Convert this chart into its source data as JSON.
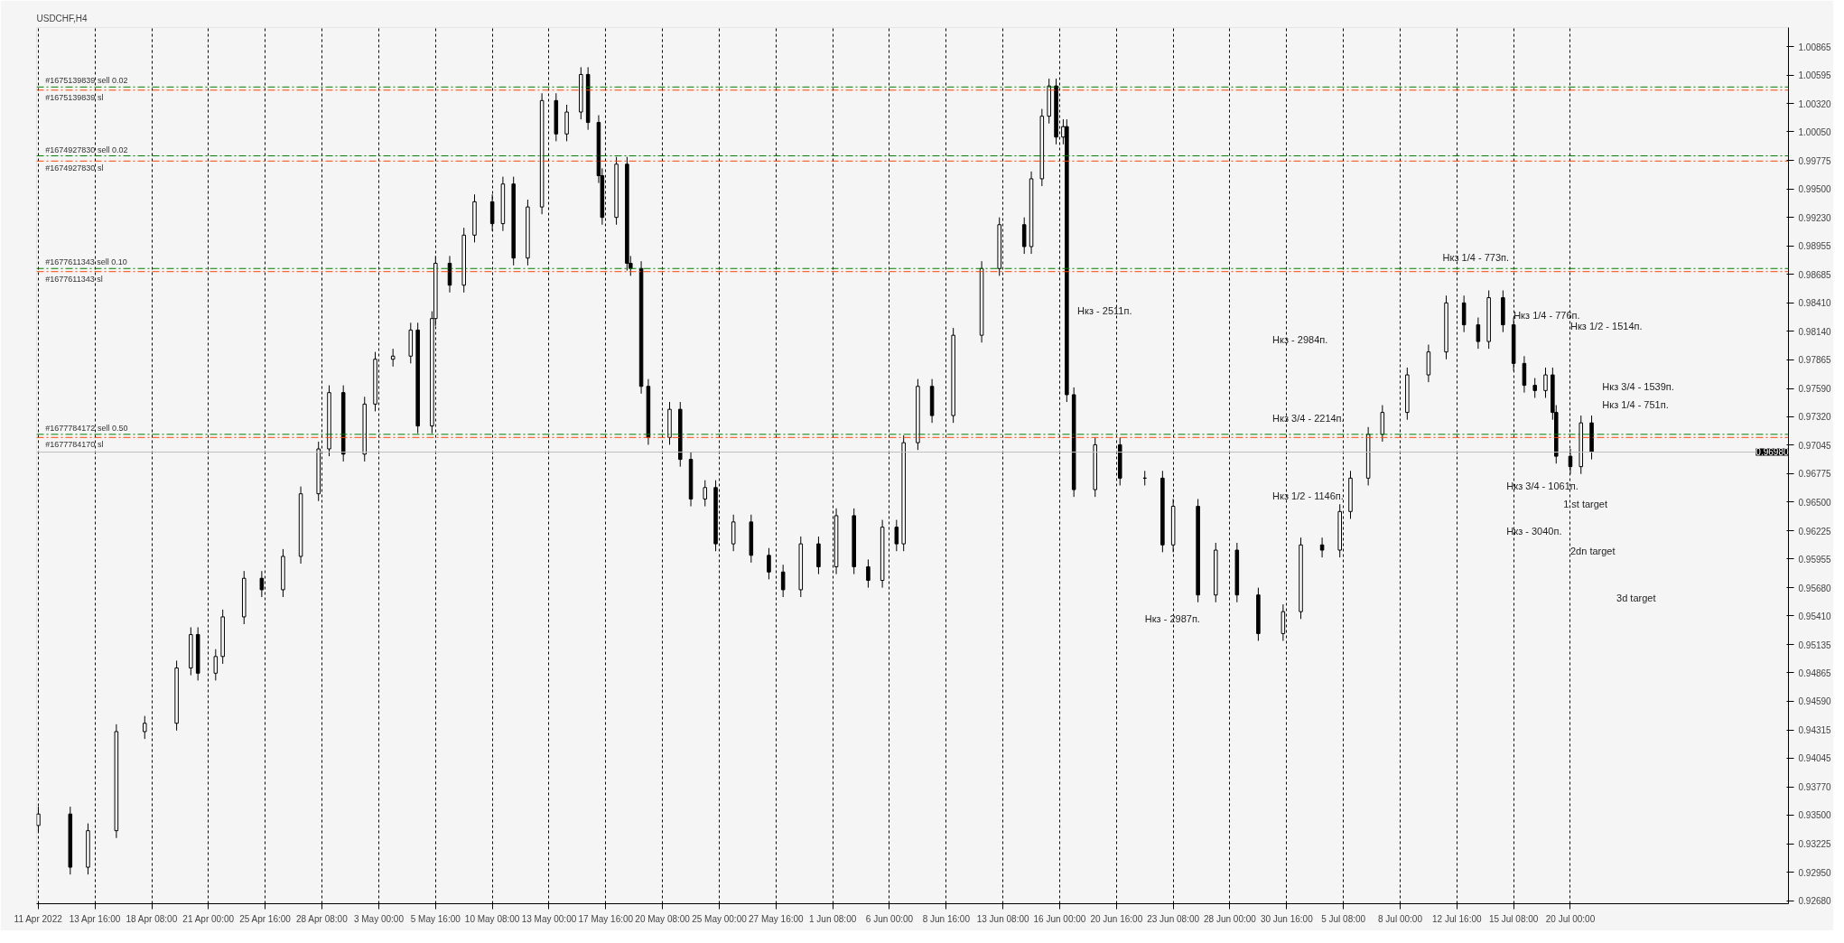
{
  "chart_data": {
    "type": "candlestick",
    "title": "USDCHF,H4",
    "categories": [
      "11 Apr 2022",
      null,
      null,
      null,
      null,
      null,
      null,
      null,
      null,
      null,
      null,
      null,
      null,
      null,
      null,
      null,
      "13 Apr 16:00",
      null,
      null,
      null,
      null,
      null,
      null,
      null,
      null,
      null,
      null,
      null,
      null,
      null,
      null,
      null,
      "18 Apr 08:00",
      null,
      null,
      null,
      null,
      null,
      null,
      null,
      null,
      null,
      null,
      null,
      null,
      null,
      null,
      null,
      "21 Apr 00:00",
      null,
      null,
      null,
      null,
      null,
      null,
      null,
      null,
      null,
      null,
      null,
      null,
      null,
      null,
      null,
      "25 Apr 16:00",
      null,
      null,
      null,
      null,
      null,
      null,
      null,
      null,
      null,
      null,
      null,
      null,
      null,
      null,
      null,
      "28 Apr 08:00",
      null,
      null,
      null,
      null,
      null,
      null,
      null,
      null,
      null,
      null,
      null,
      null,
      null,
      null,
      null,
      "3 May 00:00",
      null,
      null,
      null,
      null,
      null,
      null,
      null,
      null,
      null,
      null,
      null,
      null,
      null,
      null,
      null,
      "5 May 16:00",
      null,
      null,
      null,
      null,
      null,
      null,
      null,
      null,
      null,
      null,
      null,
      null,
      null,
      null,
      null,
      "10 May 08:00",
      null,
      null,
      null,
      null,
      null,
      null,
      null,
      null,
      null,
      null,
      null,
      null,
      null,
      null,
      null,
      "13 May 00:00",
      null,
      null,
      null,
      null,
      null,
      null,
      null,
      null,
      null,
      null,
      null,
      null,
      null,
      null,
      null,
      "17 May 16:00",
      null,
      null,
      null,
      null,
      null,
      null,
      null,
      null,
      null,
      null,
      null,
      null,
      null,
      null,
      null,
      "20 May 08:00",
      null,
      null,
      null,
      null,
      null,
      null,
      null,
      null,
      null,
      null,
      null,
      null,
      null,
      null,
      null,
      "25 May 00:00",
      null,
      null,
      null,
      null,
      null,
      null,
      null,
      null,
      null,
      null,
      null,
      null,
      null,
      null,
      null,
      "27 May 16:00",
      null,
      null,
      null,
      null,
      null,
      null,
      null,
      null,
      null,
      null,
      null,
      null,
      null,
      null,
      null,
      "1 Jun 08:00",
      null,
      null,
      null,
      null,
      null,
      null,
      null,
      null,
      null,
      null,
      null,
      null,
      null,
      null,
      null,
      "6 Jun 00:00",
      null,
      null,
      null,
      null,
      null,
      null,
      null,
      null,
      null,
      null,
      null,
      null,
      null,
      null,
      null,
      "8 Jun 16:00",
      null,
      null,
      null,
      null,
      null,
      null,
      null,
      null,
      null,
      null,
      null,
      null,
      null,
      null,
      null,
      "13 Jun 08:00",
      null,
      null,
      null,
      null,
      null,
      null,
      null,
      null,
      null,
      null,
      null,
      null,
      null,
      null,
      null,
      "16 Jun 00:00",
      null,
      null,
      null,
      null,
      null,
      null,
      null,
      null,
      null,
      null,
      null,
      null,
      null,
      null,
      null,
      "20 Jun 16:00",
      null,
      null,
      null,
      null,
      null,
      null,
      null,
      null,
      null,
      null,
      null,
      null,
      null,
      null,
      null,
      "23 Jun 08:00",
      null,
      null,
      null,
      null,
      null,
      null,
      null,
      null,
      null,
      null,
      null,
      null,
      null,
      null,
      null,
      "28 Jun 00:00",
      null,
      null,
      null,
      null,
      null,
      null,
      null,
      null,
      null,
      null,
      null,
      null,
      null,
      null,
      null,
      "30 Jun 16:00",
      null,
      null,
      null,
      null,
      null,
      null,
      null,
      null,
      null,
      null,
      null,
      null,
      null,
      null,
      null,
      "5 Jul 08:00",
      null,
      null,
      null,
      null,
      null,
      null,
      null,
      null,
      null,
      null,
      null,
      null,
      null,
      null,
      null,
      "8 Jul 00:00",
      null,
      null,
      null,
      null,
      null,
      null,
      null,
      null,
      null,
      null,
      null,
      null,
      null,
      null,
      null,
      "12 Jul 16:00",
      null,
      null,
      null,
      null,
      null,
      null,
      null,
      null,
      null,
      null,
      null,
      null,
      null,
      null,
      null,
      "15 Jul 08:00",
      null,
      null,
      null,
      null,
      null,
      null,
      null,
      null,
      null,
      null,
      null,
      null,
      null,
      null,
      null,
      "20 Jul 00:00",
      null,
      null,
      null,
      null,
      null,
      null,
      null,
      null,
      null,
      null,
      null,
      null,
      null,
      null,
      null,
      null,
      null,
      null,
      null,
      null,
      null,
      null,
      null,
      null,
      null,
      null,
      null,
      null,
      null,
      null,
      null,
      null,
      null,
      null,
      null,
      null,
      null,
      null,
      null,
      null,
      null,
      null,
      null,
      null,
      null,
      null,
      null,
      null,
      null,
      null,
      null,
      null,
      null,
      null,
      null,
      null,
      null,
      null,
      null,
      null,
      null
    ],
    "ohlc": [
      [
        0.934,
        0.9358,
        0.9333,
        0.9351
      ],
      null,
      null,
      null,
      null,
      null,
      null,
      null,
      null,
      [
        0.9351,
        0.9358,
        0.9293,
        0.93
      ],
      null,
      null,
      null,
      null,
      [
        0.93,
        0.9342,
        0.9293,
        0.9335
      ],
      null,
      null,
      null,
      null,
      null,
      null,
      null,
      [
        0.9335,
        0.9437,
        0.9328,
        0.943
      ],
      null,
      null,
      null,
      null,
      null,
      null,
      null,
      [
        0.943,
        0.9445,
        0.9423,
        0.9438
      ],
      null,
      null,
      null,
      null,
      null,
      null,
      null,
      null,
      [
        0.9438,
        0.9498,
        0.9431,
        0.9491
      ],
      null,
      null,
      null,
      [
        0.9491,
        0.953,
        0.9484,
        0.9523
      ],
      null,
      [
        0.9523,
        0.953,
        0.9479,
        0.9486
      ],
      null,
      null,
      null,
      null,
      [
        0.9486,
        0.9509,
        0.9479,
        0.9502
      ],
      null,
      [
        0.9502,
        0.9547,
        0.9495,
        0.954
      ],
      null,
      null,
      null,
      null,
      null,
      [
        0.954,
        0.9584,
        0.9533,
        0.9577
      ],
      null,
      null,
      null,
      null,
      [
        0.9577,
        0.9584,
        0.9559,
        0.9566
      ],
      null,
      null,
      null,
      null,
      null,
      [
        0.9566,
        0.9605,
        0.9559,
        0.9598
      ],
      null,
      null,
      null,
      null,
      [
        0.9598,
        0.9665,
        0.9591,
        0.9658
      ],
      null,
      null,
      null,
      null,
      [
        0.9658,
        0.9708,
        0.9651,
        0.9701
      ],
      null,
      null,
      [
        0.9701,
        0.9762,
        0.9694,
        0.9755
      ],
      null,
      null,
      null,
      [
        0.9755,
        0.9762,
        0.9689,
        0.9696
      ],
      null,
      null,
      null,
      null,
      null,
      [
        0.9696,
        0.9751,
        0.9689,
        0.9744
      ],
      null,
      null,
      [
        0.9744,
        0.9794,
        0.9737,
        0.9787
      ],
      null,
      null,
      null,
      null,
      [
        0.9787,
        0.9797,
        0.978,
        0.979
      ],
      null,
      null,
      null,
      null,
      [
        0.979,
        0.9822,
        0.9783,
        0.9815
      ],
      null,
      [
        0.9815,
        0.9822,
        0.9716,
        0.9723
      ],
      null,
      null,
      null,
      [
        0.9723,
        0.9833,
        0.9716,
        0.9826
      ],
      [
        0.9826,
        0.9886,
        0.9819,
        0.9879
      ],
      null,
      null,
      null,
      [
        0.9879,
        0.9886,
        0.9851,
        0.9858
      ],
      null,
      null,
      null,
      [
        0.9858,
        0.9913,
        0.9851,
        0.9906
      ],
      null,
      null,
      [
        0.9906,
        0.9945,
        0.9899,
        0.9938
      ],
      null,
      null,
      null,
      null,
      [
        0.9938,
        0.9945,
        0.991,
        0.9917
      ],
      null,
      null,
      [
        0.9917,
        0.9962,
        0.991,
        0.9955
      ],
      null,
      null,
      [
        0.9955,
        0.9962,
        0.9877,
        0.9884
      ],
      null,
      null,
      null,
      [
        0.9884,
        0.994,
        0.9877,
        0.9933
      ],
      null,
      null,
      null,
      [
        0.9933,
        1.0042,
        0.9926,
        1.0035
      ],
      null,
      null,
      null,
      [
        1.0035,
        1.0042,
        0.9996,
        1.0003
      ],
      null,
      null,
      [
        1.0003,
        1.0031,
        0.9996,
        1.0024
      ],
      null,
      null,
      null,
      [
        1.0024,
        1.0067,
        1.0017,
        1.006
      ],
      null,
      [
        1.006,
        1.0067,
        1.0007,
        1.0014
      ],
      null,
      null,
      [
        1.0014,
        1.0021,
        0.9956,
        0.9963
      ],
      [
        0.9963,
        0.997,
        0.9916,
        0.9923
      ],
      null,
      null,
      null,
      [
        0.9923,
        0.9981,
        0.9916,
        0.9974
      ],
      null,
      null,
      [
        0.9974,
        0.9981,
        0.9872,
        0.9879
      ],
      [
        0.9879,
        0.9886,
        0.9867,
        0.9874
      ],
      null,
      null,
      [
        0.9874,
        0.9881,
        0.9754,
        0.9761
      ],
      null,
      [
        0.9761,
        0.9768,
        0.9705,
        0.9712
      ],
      null,
      null,
      null,
      null,
      null,
      [
        0.9712,
        0.9746,
        0.9705,
        0.9739
      ],
      null,
      null,
      [
        0.9739,
        0.9746,
        0.9684,
        0.9691
      ],
      null,
      null,
      [
        0.9691,
        0.9698,
        0.9646,
        0.9653
      ],
      null,
      null,
      null,
      [
        0.9653,
        0.9671,
        0.9646,
        0.9664
      ],
      null,
      null,
      [
        0.9664,
        0.9671,
        0.9603,
        0.961
      ],
      null,
      null,
      null,
      null,
      [
        0.961,
        0.9638,
        0.9603,
        0.9631
      ],
      null,
      null,
      null,
      null,
      [
        0.9631,
        0.9638,
        0.9592,
        0.9599
      ],
      null,
      null,
      null,
      null,
      [
        0.9599,
        0.9606,
        0.9576,
        0.9583
      ],
      null,
      null,
      null,
      [
        0.9583,
        0.959,
        0.9559,
        0.9566
      ],
      null,
      null,
      null,
      null,
      [
        0.9566,
        0.9617,
        0.9559,
        0.961
      ],
      null,
      null,
      null,
      null,
      [
        0.961,
        0.9617,
        0.9581,
        0.9588
      ],
      null,
      null,
      null,
      null,
      [
        0.9588,
        0.9644,
        0.9581,
        0.9637
      ],
      null,
      null,
      null,
      null,
      [
        0.9637,
        0.9644,
        0.9581,
        0.9588
      ],
      null,
      null,
      null,
      [
        0.9588,
        0.9595,
        0.9568,
        0.9575
      ],
      null,
      null,
      null,
      [
        0.9575,
        0.9633,
        0.9568,
        0.9626
      ],
      null,
      null,
      null,
      [
        0.9626,
        0.9633,
        0.9603,
        0.961
      ],
      null,
      [
        0.961,
        0.9714,
        0.9603,
        0.9707
      ],
      null,
      null,
      null,
      [
        0.9707,
        0.9768,
        0.97,
        0.9761
      ],
      null,
      null,
      null,
      [
        0.9761,
        0.9768,
        0.9726,
        0.9733
      ],
      null,
      null,
      null,
      null,
      null,
      [
        0.9733,
        0.9817,
        0.9726,
        0.981
      ],
      null,
      null,
      null,
      null,
      null,
      null,
      null,
      [
        0.981,
        0.9881,
        0.9803,
        0.9874
      ],
      null,
      null,
      null,
      null,
      [
        0.9874,
        0.9923,
        0.9867,
        0.9916
      ],
      null,
      null,
      null,
      null,
      null,
      null,
      [
        0.9916,
        0.9923,
        0.9888,
        0.9895
      ],
      null,
      [
        0.9895,
        0.9967,
        0.9888,
        0.996
      ],
      null,
      null,
      [
        0.996,
        1.0027,
        0.9953,
        1.002
      ],
      null,
      [
        1.002,
        1.0056,
        1.0013,
        1.0049
      ],
      null,
      [
        1.0049,
        1.0056,
        0.9993,
        1.0
      ],
      null,
      [
        1.0,
        1.0017,
        0.9993,
        1.001
      ],
      [
        1.001,
        1.0017,
        0.9746,
        0.9753
      ],
      null,
      [
        0.9753,
        0.976,
        0.9655,
        0.9662
      ],
      null,
      null,
      null,
      null,
      null,
      [
        0.9662,
        0.9712,
        0.9655,
        0.9705
      ],
      null,
      null,
      null,
      null,
      null,
      null,
      [
        0.9705,
        0.9712,
        0.9666,
        0.9673
      ],
      null,
      null,
      null,
      null,
      null,
      null,
      [
        0.9673,
        0.968,
        0.9666,
        0.9673
      ],
      null,
      null,
      null,
      null,
      [
        0.9673,
        0.968,
        0.9602,
        0.9609
      ],
      null,
      null,
      [
        0.9609,
        0.9653,
        0.9602,
        0.9646
      ],
      null,
      null,
      null,
      null,
      null,
      null,
      [
        0.9646,
        0.9653,
        0.9554,
        0.9561
      ],
      null,
      null,
      null,
      null,
      [
        0.9561,
        0.9611,
        0.9554,
        0.9604
      ],
      null,
      null,
      null,
      null,
      null,
      [
        0.9604,
        0.9611,
        0.9554,
        0.9561
      ],
      null,
      null,
      null,
      null,
      null,
      [
        0.9561,
        0.9568,
        0.9517,
        0.9524
      ],
      null,
      null,
      null,
      null,
      null,
      null,
      [
        0.9524,
        0.9552,
        0.9517,
        0.9545
      ],
      null,
      null,
      null,
      null,
      [
        0.9545,
        0.9616,
        0.9538,
        0.9609
      ],
      null,
      null,
      null,
      null,
      null,
      [
        0.9609,
        0.9616,
        0.9597,
        0.9604
      ],
      null,
      null,
      null,
      null,
      [
        0.9604,
        0.9648,
        0.9597,
        0.9641
      ],
      null,
      null,
      [
        0.9641,
        0.968,
        0.9634,
        0.9673
      ],
      null,
      null,
      null,
      null,
      [
        0.9673,
        0.9722,
        0.9666,
        0.9715
      ],
      null,
      null,
      null,
      [
        0.9715,
        0.9743,
        0.9708,
        0.9736
      ],
      null,
      null,
      null,
      null,
      null,
      null,
      [
        0.9736,
        0.9779,
        0.9729,
        0.9772
      ],
      null,
      null,
      null,
      null,
      null,
      [
        0.9772,
        0.9801,
        0.9765,
        0.9794
      ],
      null,
      null,
      null,
      null,
      [
        0.9794,
        0.9848,
        0.9787,
        0.9841
      ],
      null,
      null,
      null,
      null,
      [
        0.9841,
        0.9848,
        0.9813,
        0.982
      ],
      null,
      null,
      null,
      [
        0.982,
        0.9827,
        0.9797,
        0.9804
      ],
      null,
      null,
      [
        0.9804,
        0.9853,
        0.9797,
        0.9846
      ],
      null,
      null,
      null,
      [
        0.9846,
        0.9853,
        0.9813,
        0.982
      ],
      null,
      null,
      [
        0.982,
        0.9827,
        0.9776,
        0.9783
      ],
      null,
      null,
      [
        0.9783,
        0.979,
        0.9755,
        0.9762
      ],
      null,
      null,
      [
        0.9762,
        0.9769,
        0.975,
        0.9757
      ],
      null,
      null,
      [
        0.9757,
        0.9779,
        0.975,
        0.9772
      ],
      null,
      [
        0.9772,
        0.9779,
        0.9729,
        0.9736
      ],
      [
        0.9736,
        0.9743,
        0.9687,
        0.9694
      ],
      null,
      null,
      null,
      [
        0.9694,
        0.9701,
        0.9677,
        0.9684
      ],
      null,
      null,
      [
        0.9684,
        0.9733,
        0.9677,
        0.9726
      ],
      null,
      null,
      [
        0.9726,
        0.9733,
        0.9691,
        0.9698
      ],
      null,
      null,
      null,
      null,
      null,
      null,
      null,
      null,
      null,
      null,
      null,
      null,
      null,
      null,
      null,
      null,
      null,
      null,
      null,
      null,
      null,
      null,
      null,
      null,
      null,
      null,
      null,
      null,
      null,
      null,
      null,
      null,
      null,
      null,
      null,
      null,
      null,
      null,
      null,
      null,
      null,
      null,
      null,
      null,
      null,
      null,
      null,
      null,
      null,
      null,
      null,
      null,
      null,
      null,
      null
    ],
    "ylim": [
      0.9265,
      1.0105
    ],
    "yticks": [
      {
        "value": 1.00865,
        "label": "1.00865"
      },
      {
        "value": 1.00595,
        "label": "1.00595"
      },
      {
        "value": 1.0032,
        "label": "1.00320"
      },
      {
        "value": 1.0005,
        "label": "1.00050"
      },
      {
        "value": 0.99775,
        "label": "0.99775"
      },
      {
        "value": 0.995,
        "label": "0.99500"
      },
      {
        "value": 0.9923,
        "label": "0.99230"
      },
      {
        "value": 0.98955,
        "label": "0.98955"
      },
      {
        "value": 0.98685,
        "label": "0.98685"
      },
      {
        "value": 0.9841,
        "label": "0.98410"
      },
      {
        "value": 0.9814,
        "label": "0.98140"
      },
      {
        "value": 0.97865,
        "label": "0.97865"
      },
      {
        "value": 0.9759,
        "label": "0.97590"
      },
      {
        "value": 0.9732,
        "label": "0.97320"
      },
      {
        "value": 0.97045,
        "label": "0.97045"
      },
      {
        "value": 0.96775,
        "label": "0.96775"
      },
      {
        "value": 0.965,
        "label": "0.96500"
      },
      {
        "value": 0.96225,
        "label": "0.96225"
      },
      {
        "value": 0.95955,
        "label": "0.95955"
      },
      {
        "value": 0.9568,
        "label": "0.95680"
      },
      {
        "value": 0.9541,
        "label": "0.95410"
      },
      {
        "value": 0.95135,
        "label": "0.95135"
      },
      {
        "value": 0.94865,
        "label": "0.94865"
      },
      {
        "value": 0.9459,
        "label": "0.94590"
      },
      {
        "value": 0.94315,
        "label": "0.94315"
      },
      {
        "value": 0.94045,
        "label": "0.94045"
      },
      {
        "value": 0.9377,
        "label": "0.93770"
      },
      {
        "value": 0.935,
        "label": "0.93500"
      },
      {
        "value": 0.93225,
        "label": "0.93225"
      },
      {
        "value": 0.9295,
        "label": "0.92950"
      },
      {
        "value": 0.9268,
        "label": "0.92680"
      }
    ],
    "grid": "x",
    "ref_lines": [
      {
        "axis": "y",
        "value": 1.0048,
        "label": "#1675139839 sell 0.02",
        "color": "#008000",
        "line_style": "dashed"
      },
      {
        "axis": "y",
        "value": 1.0045,
        "label": "#1675139839 sl",
        "color": "#ff4500",
        "line_style": "dashed"
      },
      {
        "axis": "y",
        "value": 0.9982,
        "label": "#1674927830 sell 0.02",
        "color": "#008000",
        "line_style": "dashed"
      },
      {
        "axis": "y",
        "value": 0.9977,
        "label": "#1674927830 sl",
        "color": "#ff4500",
        "line_style": "dashed"
      },
      {
        "axis": "y",
        "value": 0.9874,
        "label": "#1677611343 sell 0.10",
        "color": "#008000",
        "line_style": "dashed"
      },
      {
        "axis": "y",
        "value": 0.9871,
        "label": "#1677611343 sl",
        "color": "#ff4500",
        "line_style": "dashed"
      },
      {
        "axis": "y",
        "value": 0.9715,
        "label": "#1677784172 sell 0.50",
        "color": "#008000",
        "line_style": "dashed"
      },
      {
        "axis": "y",
        "value": 0.9712,
        "label": "#1677784170 sl",
        "color": "#ff4500",
        "line_style": "dashed"
      },
      {
        "axis": "y",
        "value": 0.9698,
        "label": "0.96980",
        "color": "#c0c0c0",
        "line_style": "solid"
      }
    ],
    "annotations": [
      "Нкз - 2511п.",
      "Нкз - 2984п.",
      "Нкз 3/4 - 2214п.",
      "Нкз 1/2 - 1146п.",
      "Нкз - 2987п.",
      "Нкз 1/4 - 773п.",
      "Нкз 1/4 - 776п.",
      "Нкз 1/2 - 1514п.",
      "Нкз 3/4 - 1539п.",
      "Нкз 1/4 - 751п.",
      "Нкз 3/4 - 1061п.",
      "Нкз - 3040п.",
      "1 st target",
      "2dn target",
      "3d target"
    ]
  }
}
